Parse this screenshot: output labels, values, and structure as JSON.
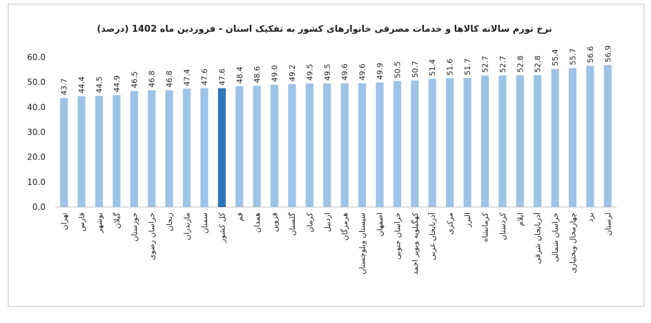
{
  "chart_data": {
    "type": "bar",
    "title": "نرخ تورم سالانه کالاها و خدمات مصرفی خانوارهای کشور به تفکیک استان - فروردین ماه 1402 (درصد)",
    "categories": [
      "تهران",
      "فارس",
      "بوشهر",
      "گیلان",
      "خوزستان",
      "خراسان رضوی",
      "زنجان",
      "مازندران",
      "سمنان",
      "کل کشور",
      "قم",
      "همدان",
      "قزوین",
      "گلستان",
      "کرمان",
      "اردبیل",
      "هرمزگان",
      "سیستان وبلوچستان",
      "اصفهان",
      "خراسان جنوبی",
      "کهگیلویه وبویر احمد",
      "آذربایجان غربی",
      "مرکزی",
      "البرز",
      "کرمانشاه",
      "کردستان",
      "ایلام",
      "آذربایجان شرقی",
      "خراسان شمالی",
      "چهارمحال وبختیاری",
      "یزد",
      "لرستان"
    ],
    "values": [
      43.7,
      44.4,
      44.5,
      44.9,
      46.5,
      46.8,
      46.8,
      47.4,
      47.6,
      47.6,
      48.4,
      48.6,
      49.0,
      49.2,
      49.5,
      49.5,
      49.6,
      49.6,
      49.9,
      50.5,
      50.7,
      51.4,
      51.6,
      51.7,
      52.7,
      52.7,
      52.8,
      52.8,
      55.4,
      55.7,
      56.6,
      56.9
    ],
    "value_labels": [
      "43.7",
      "44.4",
      "44.5",
      "44.9",
      "46.5",
      "46.8",
      "46.8",
      "47.4",
      "47.6",
      "47.6",
      "48.4",
      "48.6",
      "49.0",
      "49.2",
      "49.5",
      "49.5",
      "49.6",
      "49.6",
      "49.9",
      "50.5",
      "50.7",
      "51.4",
      "51.6",
      "51.7",
      "52.7",
      "52.7",
      "52.8",
      "52.8",
      "55.4",
      "55.7",
      "56.6",
      "56.9"
    ],
    "colors": [
      "#9dc3e6",
      "#9dc3e6",
      "#9dc3e6",
      "#9dc3e6",
      "#9dc3e6",
      "#9dc3e6",
      "#9dc3e6",
      "#9dc3e6",
      "#9dc3e6",
      "#2e75b6",
      "#9dc3e6",
      "#9dc3e6",
      "#9dc3e6",
      "#9dc3e6",
      "#9dc3e6",
      "#9dc3e6",
      "#9dc3e6",
      "#9dc3e6",
      "#9dc3e6",
      "#9dc3e6",
      "#9dc3e6",
      "#9dc3e6",
      "#9dc3e6",
      "#9dc3e6",
      "#9dc3e6",
      "#9dc3e6",
      "#9dc3e6",
      "#9dc3e6",
      "#9dc3e6",
      "#9dc3e6",
      "#9dc3e6",
      "#9dc3e6"
    ],
    "ylim": [
      0,
      60
    ],
    "yticks": [
      {
        "value": 0,
        "label": "0.0"
      },
      {
        "value": 10,
        "label": "10.0"
      },
      {
        "value": 20,
        "label": "20.0"
      },
      {
        "value": 30,
        "label": "30.0"
      },
      {
        "value": 40,
        "label": "40.0"
      },
      {
        "value": 50,
        "label": "50.0"
      },
      {
        "value": 60,
        "label": "60.0"
      }
    ],
    "grid": false
  }
}
